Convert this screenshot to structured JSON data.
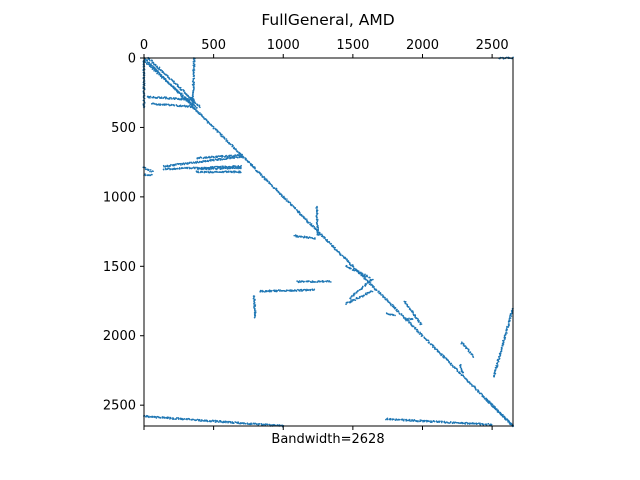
{
  "chart_data": {
    "type": "scatter",
    "title": "FullGeneral, AMD",
    "xlabel": "Bandwidth=2628",
    "ylabel": "",
    "xlim": [
      0,
      2650
    ],
    "ylim": [
      2650,
      0
    ],
    "x_ticks": [
      "0",
      "500",
      "1000",
      "1500",
      "2000",
      "2500"
    ],
    "y_ticks": [
      "0",
      "500",
      "1000",
      "1500",
      "2000",
      "2500"
    ],
    "x_tick_values": [
      0,
      500,
      1000,
      1500,
      2000,
      2500
    ],
    "y_tick_values": [
      0,
      500,
      1000,
      1500,
      2000,
      2500
    ],
    "x_tick_position": "top",
    "grid": false,
    "marker_color": "#1f77b4",
    "series": [
      {
        "description": "sparsity pattern of matrix (row, col) nonzeros",
        "segments": [
          {
            "from": [
              0,
              0
            ],
            "to": [
              2650,
              2650
            ]
          },
          {
            "from": [
              0,
              20
            ],
            "to": [
              380,
              360
            ]
          },
          {
            "from": [
              30,
              0
            ],
            "to": [
              400,
              350
            ]
          },
          {
            "from": [
              0,
              20
            ],
            "to": [
              0,
              360
            ]
          },
          {
            "from": [
              20,
              280
            ],
            "to": [
              360,
              300
            ]
          },
          {
            "from": [
              50,
              330
            ],
            "to": [
              340,
              350
            ]
          },
          {
            "from": [
              360,
              0
            ],
            "to": [
              350,
              360
            ]
          },
          {
            "from": [
              0,
              790
            ],
            "to": [
              60,
              820
            ]
          },
          {
            "from": [
              0,
              840
            ],
            "to": [
              60,
              840
            ]
          },
          {
            "from": [
              140,
              800
            ],
            "to": [
              700,
              780
            ]
          },
          {
            "from": [
              140,
              780
            ],
            "to": [
              700,
              710
            ]
          },
          {
            "from": [
              380,
              720
            ],
            "to": [
              700,
              700
            ]
          },
          {
            "from": [
              700,
              790
            ],
            "to": [
              380,
              800
            ]
          },
          {
            "from": [
              700,
              820
            ],
            "to": [
              380,
              820
            ]
          },
          {
            "from": [
              1080,
              1280
            ],
            "to": [
              1230,
              1300
            ]
          },
          {
            "from": [
              1250,
              1280
            ],
            "to": [
              1240,
              1070
            ]
          },
          {
            "from": [
              1640,
              1680
            ],
            "to": [
              1450,
              1770
            ]
          },
          {
            "from": [
              1640,
              1590
            ],
            "to": [
              1480,
              1730
            ]
          },
          {
            "from": [
              1620,
              1580
            ],
            "to": [
              1450,
              1500
            ]
          },
          {
            "from": [
              1100,
              1610
            ],
            "to": [
              1340,
              1610
            ]
          },
          {
            "from": [
              790,
              1710
            ],
            "to": [
              800,
              1870
            ]
          },
          {
            "from": [
              830,
              1680
            ],
            "to": [
              1220,
              1670
            ]
          },
          {
            "from": [
              1740,
              1840
            ],
            "to": [
              1800,
              1850
            ]
          },
          {
            "from": [
              1870,
              1750
            ],
            "to": [
              1990,
              1920
            ]
          },
          {
            "from": [
              1880,
              1880
            ],
            "to": [
              1930,
              1880
            ]
          },
          {
            "from": [
              2280,
              2050
            ],
            "to": [
              2370,
              2150
            ]
          },
          {
            "from": [
              2270,
              2210
            ],
            "to": [
              2290,
              2270
            ]
          },
          {
            "from": [
              2650,
              1800
            ],
            "to": [
              2510,
              2300
            ]
          },
          {
            "from": [
              0,
              2580
            ],
            "to": [
              1000,
              2650
            ]
          },
          {
            "from": [
              1740,
              2600
            ],
            "to": [
              2500,
              2640
            ]
          },
          {
            "from": [
              2450,
              2450
            ],
            "to": [
              2650,
              2650
            ]
          },
          {
            "from": [
              2550,
              0
            ],
            "to": [
              2650,
              0
            ]
          }
        ]
      }
    ]
  }
}
